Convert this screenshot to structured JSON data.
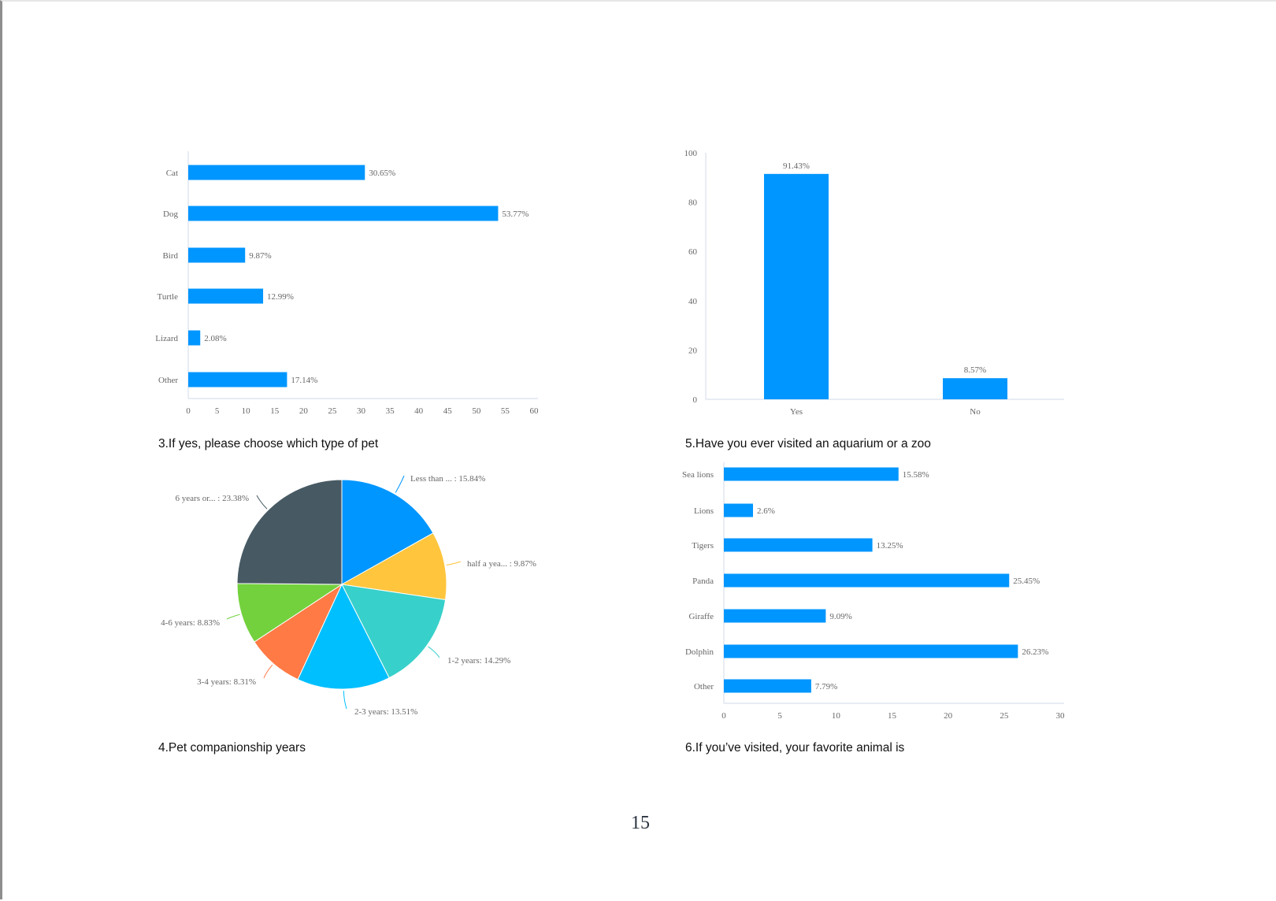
{
  "page_number": "15",
  "colors": {
    "bar": "#0096ff",
    "axis": "#e0e6f1",
    "label": "#666666"
  },
  "chart_data": [
    {
      "type": "bar",
      "orientation": "horizontal",
      "title": "3.If yes, please choose which type of pet",
      "categories": [
        "Cat",
        "Dog",
        "Bird",
        "Turtle",
        "Lizard",
        "Other"
      ],
      "values": [
        30.65,
        53.77,
        9.87,
        12.99,
        2.08,
        17.14
      ],
      "data_labels": [
        "30.65%",
        "53.77%",
        "9.87%",
        "12.99%",
        "2.08%",
        "17.14%"
      ],
      "xlim": [
        0,
        60
      ],
      "ticks": [
        "0",
        "5",
        "10",
        "15",
        "20",
        "25",
        "30",
        "35",
        "40",
        "45",
        "50",
        "55",
        "60"
      ],
      "grid": false
    },
    {
      "type": "bar",
      "orientation": "vertical",
      "title": "5.Have you ever visited an aquarium or a zoo",
      "categories": [
        "Yes",
        "No"
      ],
      "values": [
        91.43,
        8.57
      ],
      "data_labels": [
        "91.43%",
        "8.57%"
      ],
      "ylim": [
        0,
        100
      ],
      "ticks": [
        "0",
        "20",
        "40",
        "60",
        "80",
        "100"
      ],
      "grid": false
    },
    {
      "type": "pie",
      "title": "4.Pet companionship years",
      "slices": [
        {
          "label": "Less than ... : 15.84%",
          "value": 15.84,
          "color": "#0096ff"
        },
        {
          "label": "half a yea... : 9.87%",
          "value": 9.87,
          "color": "#ffc53d"
        },
        {
          "label": "1-2 years: 14.29%",
          "value": 14.29,
          "color": "#38d0ca"
        },
        {
          "label": "2-3 years: 13.51%",
          "value": 13.51,
          "color": "#00bfff"
        },
        {
          "label": "3-4 years: 8.31%",
          "value": 8.31,
          "color": "#ff7a45"
        },
        {
          "label": "4-6 years: 8.83%",
          "value": 8.83,
          "color": "#73d13d"
        },
        {
          "label": "6 years or... : 23.38%",
          "value": 23.38,
          "color": "#475a64"
        }
      ]
    },
    {
      "type": "bar",
      "orientation": "horizontal",
      "title": "6.If you've visited, your favorite animal is",
      "categories": [
        "Sea lions",
        "Lions",
        "Tigers",
        "Panda",
        "Giraffe",
        "Dolphin",
        "Other"
      ],
      "values": [
        15.58,
        2.6,
        13.25,
        25.45,
        9.09,
        26.23,
        7.79
      ],
      "data_labels": [
        "15.58%",
        "2.6%",
        "13.25%",
        "25.45%",
        "9.09%",
        "26.23%",
        "7.79%"
      ],
      "xlim": [
        0,
        30
      ],
      "ticks": [
        "0",
        "5",
        "10",
        "15",
        "20",
        "25",
        "30"
      ],
      "grid": false
    }
  ],
  "titles": {
    "q3": "3.If yes, please choose which type of pet",
    "q4": "4.Pet companionship years",
    "q5": "5.Have you ever visited an aquarium or a zoo",
    "q6": "6.If you’ve visited, your favorite animal is"
  }
}
